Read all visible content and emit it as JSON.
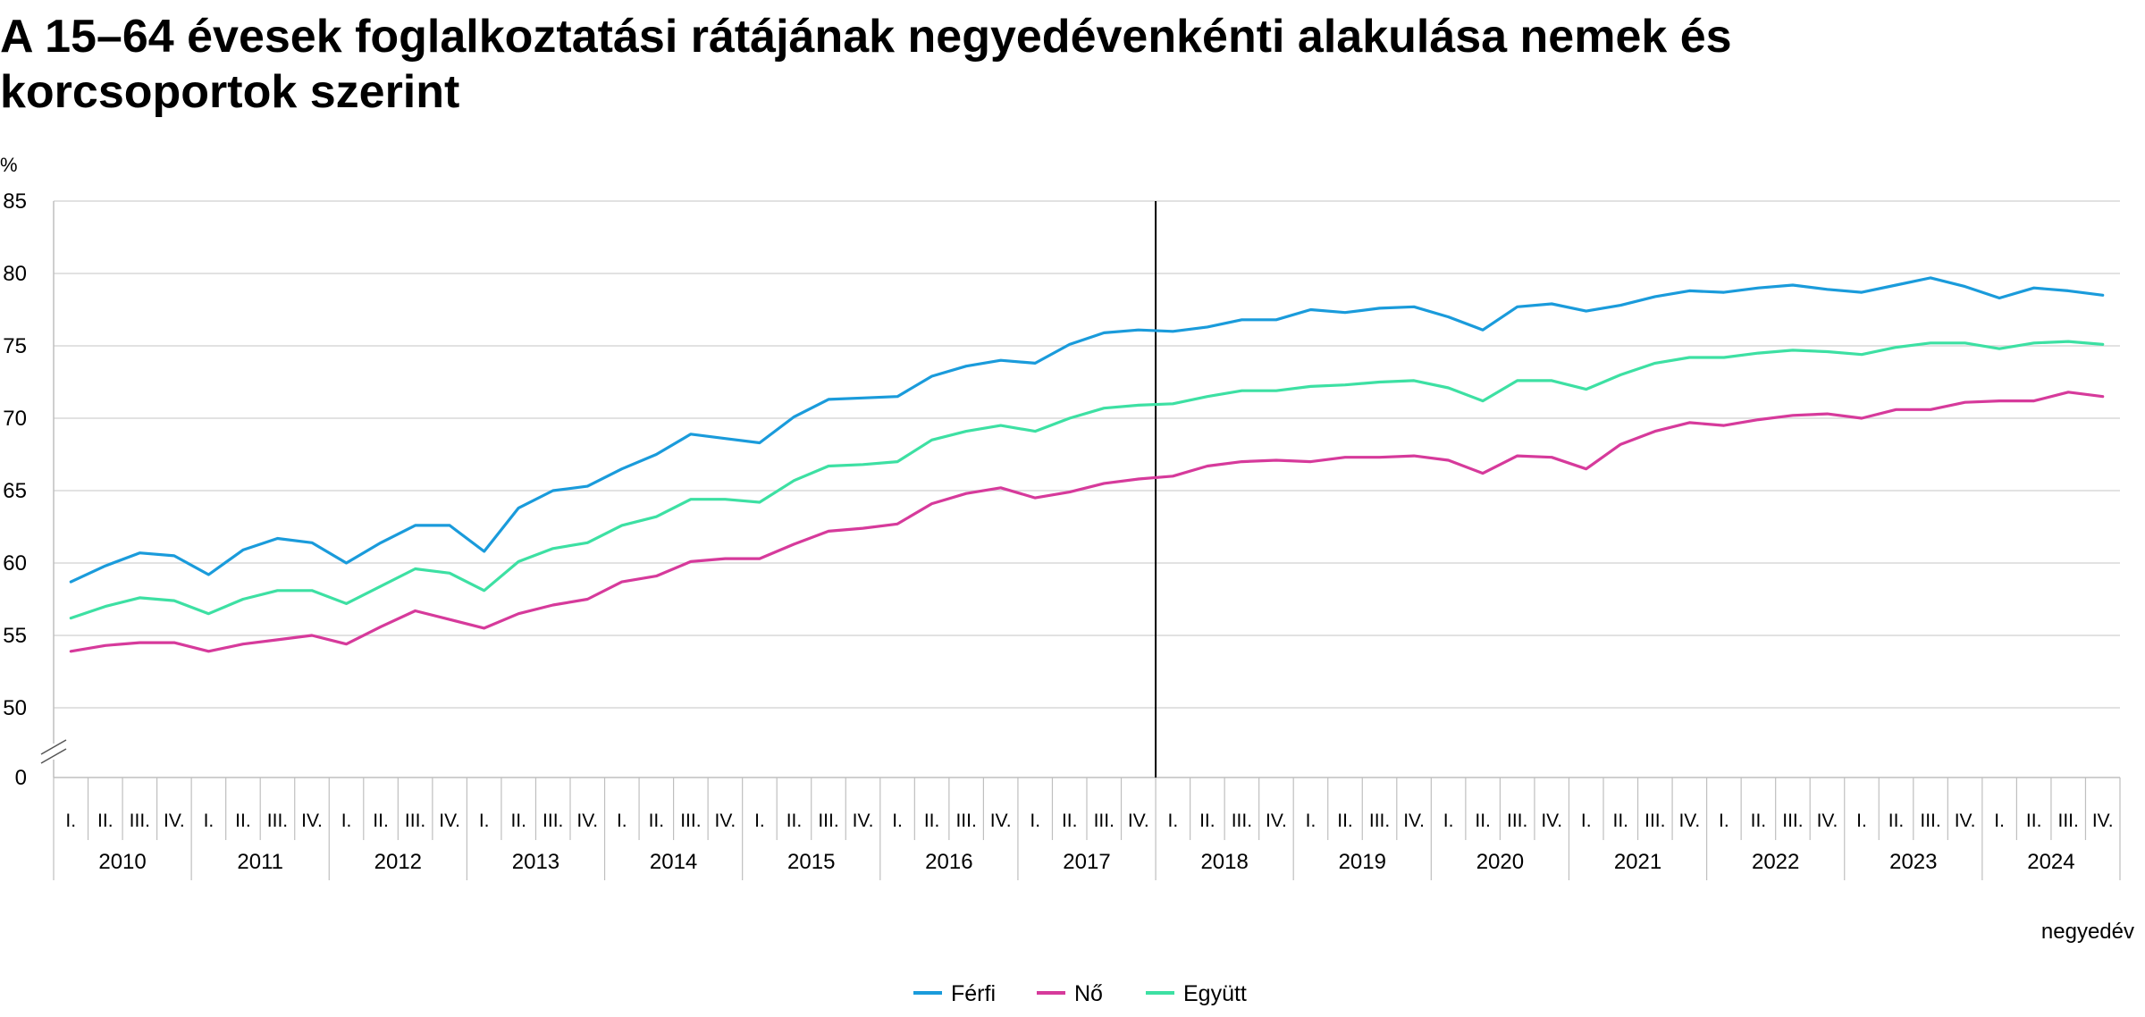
{
  "title": "A 15–64 évesek foglalkoztatási rátájának negyedévenkénti alakulása nemek és korcsoportok szerint",
  "chart_data": {
    "type": "line",
    "title": "A 15–64 évesek foglalkoztatási rátájának negyedévenkénti alakulása nemek és korcsoportok szerint",
    "ylabel": "%",
    "xlabel": "negyedév",
    "y_ticks": [
      "50",
      "55",
      "60",
      "65",
      "70",
      "75",
      "80",
      "85"
    ],
    "y_zero_label": "0",
    "ylim": [
      50,
      85
    ],
    "axis_break": true,
    "grid": true,
    "legend_position": "bottom",
    "quarter_labels": [
      "I.",
      "II.",
      "III.",
      "IV."
    ],
    "years": [
      "2010",
      "2011",
      "2012",
      "2013",
      "2014",
      "2015",
      "2016",
      "2017",
      "2018",
      "2019",
      "2020",
      "2021",
      "2022",
      "2023",
      "2024"
    ],
    "vertical_marker_after": "2017 IV.",
    "series": [
      {
        "name": "Férfi",
        "color": "#1a9bdb",
        "values": [
          58.7,
          59.8,
          60.7,
          60.5,
          59.2,
          60.9,
          61.7,
          61.4,
          60.0,
          61.4,
          62.6,
          62.6,
          60.8,
          63.8,
          65.0,
          65.3,
          66.5,
          67.5,
          68.9,
          68.6,
          68.3,
          70.1,
          71.3,
          71.4,
          71.5,
          72.9,
          73.6,
          74.0,
          73.8,
          75.1,
          75.9,
          76.1,
          76.0,
          76.3,
          76.8,
          76.8,
          77.5,
          77.3,
          77.6,
          77.7,
          77.0,
          76.1,
          77.7,
          77.9,
          77.4,
          77.8,
          78.4,
          78.8,
          78.7,
          79.0,
          79.2,
          78.9,
          78.7,
          79.2,
          79.7,
          79.1,
          78.3,
          79.0,
          78.8,
          78.5
        ]
      },
      {
        "name": "Nő",
        "color": "#d63a9b",
        "values": [
          53.9,
          54.3,
          54.5,
          54.5,
          53.9,
          54.4,
          54.7,
          55.0,
          54.4,
          55.6,
          56.7,
          56.1,
          55.5,
          56.5,
          57.1,
          57.5,
          58.7,
          59.1,
          60.1,
          60.3,
          60.3,
          61.3,
          62.2,
          62.4,
          62.7,
          64.1,
          64.8,
          65.2,
          64.5,
          64.9,
          65.5,
          65.8,
          66.0,
          66.7,
          67.0,
          67.1,
          67.0,
          67.3,
          67.3,
          67.4,
          67.1,
          66.2,
          67.4,
          67.3,
          66.5,
          68.2,
          69.1,
          69.7,
          69.5,
          69.9,
          70.2,
          70.3,
          70.0,
          70.6,
          70.6,
          71.1,
          71.2,
          71.2,
          71.8,
          71.5
        ]
      },
      {
        "name": "Együtt",
        "color": "#3de0a3",
        "values": [
          56.2,
          57.0,
          57.6,
          57.4,
          56.5,
          57.5,
          58.1,
          58.1,
          57.2,
          58.4,
          59.6,
          59.3,
          58.1,
          60.1,
          61.0,
          61.4,
          62.6,
          63.2,
          64.4,
          64.4,
          64.2,
          65.7,
          66.7,
          66.8,
          67.0,
          68.5,
          69.1,
          69.5,
          69.1,
          70.0,
          70.7,
          70.9,
          71.0,
          71.5,
          71.9,
          71.9,
          72.2,
          72.3,
          72.5,
          72.6,
          72.1,
          71.2,
          72.6,
          72.6,
          72.0,
          73.0,
          73.8,
          74.2,
          74.2,
          74.5,
          74.7,
          74.6,
          74.4,
          74.9,
          75.2,
          75.2,
          74.8,
          75.2,
          75.3,
          75.1
        ]
      }
    ]
  }
}
